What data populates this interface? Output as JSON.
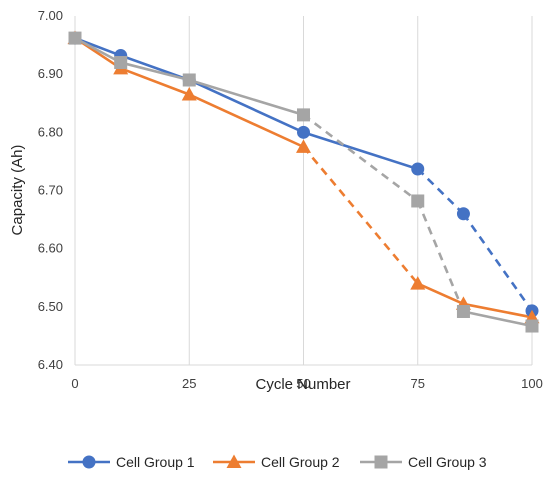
{
  "chart_data": {
    "type": "line",
    "title": "",
    "xlabel": "Cycle Number",
    "ylabel": "Capacity (Ah)",
    "xlim": [
      0,
      100
    ],
    "ylim": [
      6.4,
      7.0
    ],
    "x_ticks": [
      "0",
      "25",
      "50",
      "75",
      "100"
    ],
    "y_ticks": [
      "6.40",
      "6.50",
      "6.60",
      "6.70",
      "6.80",
      "6.90",
      "7.00"
    ],
    "grid": "vertical",
    "legend_position": "bottom",
    "series": [
      {
        "name": "Cell Group 1",
        "color": "#4472C4",
        "marker": "circle",
        "x": [
          0,
          10,
          25,
          50,
          75,
          85,
          100
        ],
        "values": [
          6.962,
          6.932,
          6.89,
          6.8,
          6.737,
          6.66,
          6.493
        ],
        "line_styles": [
          "solid",
          "solid",
          "solid",
          "solid",
          "dashed",
          "dashed"
        ]
      },
      {
        "name": "Cell Group 2",
        "color": "#ED7D31",
        "marker": "triangle",
        "x": [
          0,
          10,
          25,
          50,
          75,
          85,
          100
        ],
        "values": [
          6.962,
          6.91,
          6.865,
          6.775,
          6.54,
          6.505,
          6.482
        ],
        "line_styles": [
          "solid",
          "solid",
          "solid",
          "dashed",
          "solid",
          "solid"
        ]
      },
      {
        "name": "Cell Group 3",
        "color": "#A5A5A5",
        "marker": "square",
        "x": [
          0,
          10,
          25,
          50,
          75,
          85,
          100
        ],
        "values": [
          6.962,
          6.92,
          6.89,
          6.83,
          6.682,
          6.492,
          6.467
        ],
        "line_styles": [
          "solid",
          "solid",
          "solid",
          "dashed",
          "dashed",
          "solid"
        ]
      }
    ]
  }
}
